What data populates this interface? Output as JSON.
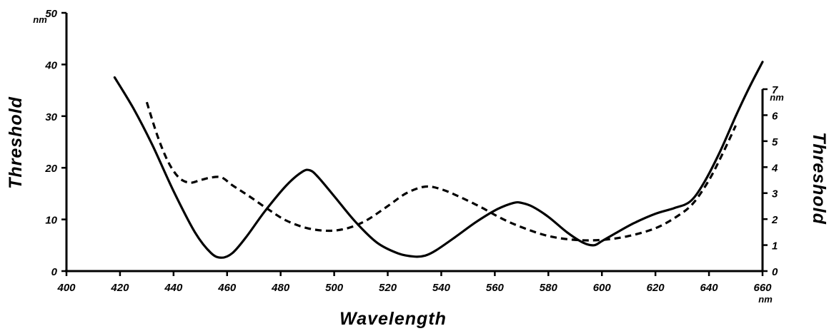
{
  "chart_data": {
    "type": "line",
    "xlabel": "Wavelength",
    "ylabel": "Threshold",
    "y2label": "Threshold",
    "x_unit": "nm",
    "y_unit": "nm",
    "y2_unit": "nm",
    "xlim": [
      400,
      660
    ],
    "ylim": [
      0,
      50
    ],
    "y2lim": [
      0,
      7
    ],
    "x_ticks": [
      "400",
      "420",
      "440",
      "460",
      "480",
      "500",
      "520",
      "540",
      "560",
      "580",
      "600",
      "620",
      "640",
      "660"
    ],
    "y_ticks": [
      "0",
      "10",
      "20",
      "30",
      "40",
      "50"
    ],
    "y2_ticks": [
      "0",
      "1",
      "2",
      "3",
      "4",
      "5",
      "6",
      "7"
    ],
    "grid": false,
    "series": [
      {
        "style": "solid",
        "axis": "left",
        "color": "#000000",
        "x": [
          418,
          425,
          432,
          440,
          448,
          454,
          458,
          462,
          467,
          474,
          482,
          488,
          491,
          494,
          500,
          508,
          516,
          524,
          530,
          534,
          538,
          545,
          553,
          561,
          567,
          570,
          574,
          580,
          587,
          593,
          597,
          600,
          605,
          612,
          620,
          627,
          633,
          638,
          644,
          650,
          655,
          660
        ],
        "y": [
          37.5,
          31.5,
          24.5,
          15.5,
          7.5,
          3.5,
          2.6,
          3.5,
          6.5,
          11.5,
          16.5,
          19.2,
          19.5,
          18.2,
          14.5,
          9.5,
          5.5,
          3.4,
          2.8,
          3.0,
          4.0,
          6.5,
          9.5,
          12,
          13.2,
          13.2,
          12.5,
          10.5,
          7.5,
          5.5,
          5.0,
          5.8,
          7.3,
          9.3,
          11.1,
          12.2,
          13.5,
          17,
          23,
          30,
          35.5,
          40.5
        ]
      },
      {
        "style": "dashed",
        "axis": "right",
        "color": "#000000",
        "x": [
          430,
          434,
          438,
          442,
          446,
          450,
          454,
          458,
          462,
          468,
          475,
          482,
          490,
          498,
          505,
          512,
          520,
          527,
          534,
          540,
          547,
          555,
          563,
          571,
          580,
          590,
          600,
          610,
          620,
          628,
          634,
          640,
          645,
          650
        ],
        "y": [
          6.5,
          5.2,
          4.2,
          3.6,
          3.4,
          3.5,
          3.6,
          3.6,
          3.3,
          2.9,
          2.4,
          1.95,
          1.65,
          1.55,
          1.65,
          1.95,
          2.5,
          3.0,
          3.25,
          3.15,
          2.85,
          2.45,
          2.0,
          1.65,
          1.35,
          1.2,
          1.2,
          1.35,
          1.65,
          2.1,
          2.6,
          3.5,
          4.5,
          5.6
        ]
      }
    ]
  }
}
